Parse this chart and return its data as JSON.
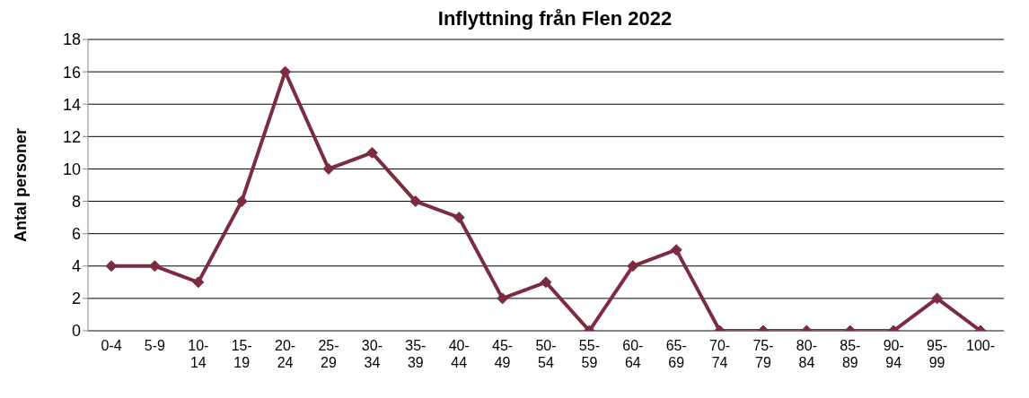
{
  "chart_data": {
    "type": "line",
    "title": "Inflyttning från Flen 2022",
    "ylabel": "Antal personer",
    "categories": [
      "0-4",
      "5-9",
      "10-14",
      "15-19",
      "20-24",
      "25-29",
      "30-34",
      "35-39",
      "40-44",
      "45-49",
      "50-54",
      "55-59",
      "60-64",
      "65-69",
      "70-74",
      "75-79",
      "80-84",
      "85-89",
      "90-94",
      "95-99",
      "100-"
    ],
    "series": [
      {
        "color": "#7b2c3f",
        "values": [
          4,
          4,
          3,
          8,
          16,
          10,
          11,
          8,
          7,
          2,
          3,
          0,
          4,
          5,
          0,
          0,
          0,
          0,
          0,
          2,
          0
        ]
      }
    ],
    "ylim": [
      0,
      18
    ],
    "yticks": [
      0,
      2,
      4,
      6,
      8,
      10,
      12,
      14,
      16,
      18
    ],
    "grid": "y",
    "legend": false,
    "marker": "diamond",
    "line_style": "solid"
  }
}
